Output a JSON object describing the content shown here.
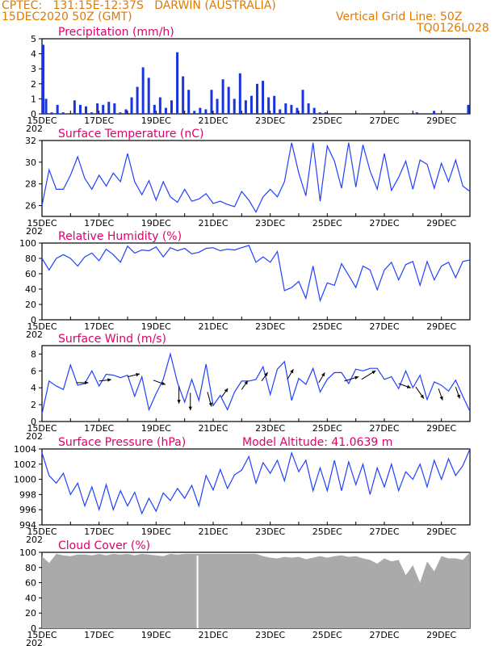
{
  "header": {
    "line1": "CPTEC:   131:15E-12:37S   DARWIN (AUSTRALIA)",
    "line2": "15DEC2020 50Z (GMT)",
    "right1": "Vertical Grid Line: 50Z",
    "right2": "TQ0126L028"
  },
  "colors": {
    "header": "#e07a00",
    "title": "#e0006a",
    "line": "#2040ff",
    "bar": "#1a35e0",
    "cloud": "#aaaaaa",
    "wind_arrow": "#000000"
  },
  "x_tick_labels": [
    "15DEC",
    "17DEC",
    "19DEC",
    "21DEC",
    "23DEC",
    "25DEC",
    "27DEC",
    "29DEC"
  ],
  "x_year_label": "202",
  "chart_data": [
    {
      "id": "precip",
      "type": "bar",
      "title": "Precipitation (mm/h)",
      "ylim": [
        0,
        5
      ],
      "yticks": [
        0,
        1,
        2,
        3,
        4,
        5
      ],
      "x": [
        0.0,
        0.1,
        0.3,
        0.5,
        0.7,
        0.9,
        1.1,
        1.3,
        1.5,
        1.7,
        1.9,
        2.1,
        2.3,
        2.5,
        2.7,
        2.9,
        3.1,
        3.3,
        3.5,
        3.7,
        3.9,
        4.1,
        4.3,
        4.5,
        4.7,
        4.9,
        5.1,
        5.3,
        5.5,
        5.7,
        5.9,
        6.1,
        6.3,
        6.5,
        6.7,
        6.9,
        7.1,
        7.3,
        7.5,
        7.7,
        7.9,
        8.1,
        8.3,
        8.5,
        8.7,
        8.9,
        9.1,
        9.3,
        9.5,
        9.7,
        9.9,
        10.1,
        10.3,
        10.5,
        10.7,
        10.9,
        11.1,
        11.3,
        11.5,
        11.7,
        11.9,
        12.1,
        12.3,
        12.5,
        12.7,
        12.9,
        13.1,
        13.3,
        13.5,
        13.7,
        13.9,
        14.1,
        14.3,
        14.5,
        14.7,
        14.9
      ],
      "values": [
        4.6,
        1.0,
        0.1,
        0.6,
        0.1,
        0.0,
        0.9,
        0.6,
        0.5,
        0.1,
        0.7,
        0.6,
        0.8,
        0.7,
        0.1,
        0.3,
        1.1,
        1.8,
        3.1,
        2.4,
        0.6,
        1.1,
        0.4,
        0.9,
        4.1,
        2.5,
        1.6,
        0.2,
        0.4,
        0.3,
        1.6,
        1.0,
        2.3,
        1.8,
        1.0,
        2.7,
        0.9,
        1.2,
        2.0,
        2.2,
        1.1,
        1.2,
        0.3,
        0.7,
        0.6,
        0.4,
        1.6,
        0.7,
        0.4,
        0.1,
        0.1,
        0.0,
        0.0,
        0.0,
        0.0,
        0.0,
        0.0,
        0.0,
        0.0,
        0.0,
        0.0,
        0.0,
        0.0,
        0.0,
        0.0,
        0.0,
        0.1,
        0.0,
        0.0,
        0.2,
        0.0,
        0.0,
        0.0,
        0.0,
        0.0,
        0.6
      ],
      "bar_width_days": 0.1
    },
    {
      "id": "temp",
      "type": "line",
      "title": "Surface Temperature (nC)",
      "ylim": [
        25,
        32
      ],
      "yticks": [
        26,
        28,
        30,
        32
      ],
      "x": [
        0,
        0.25,
        0.5,
        0.75,
        1.0,
        1.25,
        1.5,
        1.75,
        2.0,
        2.25,
        2.5,
        2.75,
        3.0,
        3.25,
        3.5,
        3.75,
        4.0,
        4.25,
        4.5,
        4.75,
        5.0,
        5.25,
        5.5,
        5.75,
        6.0,
        6.25,
        6.5,
        6.75,
        7.0,
        7.25,
        7.5,
        7.75,
        8.0,
        8.25,
        8.5,
        8.75,
        9.0,
        9.25,
        9.5,
        9.75,
        10.0,
        10.25,
        10.5,
        10.75,
        11.0,
        11.25,
        11.5,
        11.75,
        12.0,
        12.25,
        12.5,
        12.75,
        13.0,
        13.25,
        13.5,
        13.75,
        14.0,
        14.25,
        14.5,
        14.75,
        15.0
      ],
      "values": [
        26,
        29.3,
        27.5,
        27.5,
        28.8,
        30.5,
        28.5,
        27.5,
        28.8,
        27.8,
        29,
        28.2,
        30.8,
        28.2,
        27,
        28.3,
        26.5,
        28.2,
        26.8,
        26.3,
        27.5,
        26.4,
        26.6,
        27.1,
        26.2,
        26.4,
        26.1,
        25.9,
        27.3,
        26.5,
        25.4,
        26.8,
        27.5,
        26.8,
        28.2,
        31.8,
        29,
        26.9,
        31.8,
        26.4,
        31.5,
        30.1,
        27.6,
        31.8,
        27.7,
        31.6,
        29.2,
        27.5,
        30.8,
        27.4,
        28.6,
        30.1,
        27.5,
        30.2,
        29.8,
        27.6,
        29.9,
        28.2,
        30.2,
        27.8,
        27.3
      ]
    },
    {
      "id": "rh",
      "type": "line",
      "title": "Relative Humidity (%)",
      "ylim": [
        0,
        100
      ],
      "yticks": [
        0,
        20,
        40,
        60,
        80,
        100
      ],
      "x": [
        0,
        0.25,
        0.5,
        0.75,
        1.0,
        1.25,
        1.5,
        1.75,
        2.0,
        2.25,
        2.5,
        2.75,
        3.0,
        3.25,
        3.5,
        3.75,
        4.0,
        4.25,
        4.5,
        4.75,
        5.0,
        5.25,
        5.5,
        5.75,
        6.0,
        6.25,
        6.5,
        6.75,
        7.0,
        7.25,
        7.5,
        7.75,
        8.0,
        8.25,
        8.5,
        8.75,
        9.0,
        9.25,
        9.5,
        9.75,
        10.0,
        10.25,
        10.5,
        10.75,
        11.0,
        11.25,
        11.5,
        11.75,
        12.0,
        12.25,
        12.5,
        12.75,
        13.0,
        13.25,
        13.5,
        13.75,
        14.0,
        14.25,
        14.5,
        14.75,
        15.0
      ],
      "values": [
        80,
        65,
        80,
        85,
        80,
        70,
        82,
        87,
        77,
        92,
        85,
        75,
        96,
        87,
        91,
        90,
        95,
        82,
        94,
        90,
        93,
        86,
        88,
        93,
        94,
        90,
        92,
        91,
        94,
        97,
        75,
        82,
        75,
        89,
        38,
        42,
        50,
        28,
        70,
        25,
        48,
        45,
        73,
        58,
        42,
        70,
        65,
        39,
        65,
        75,
        52,
        72,
        76,
        45,
        76,
        52,
        70,
        75,
        55,
        76,
        78
      ]
    },
    {
      "id": "wind",
      "type": "line",
      "title": "Surface Wind (m/s)",
      "ylim": [
        0,
        9
      ],
      "yticks": [
        0,
        2,
        4,
        6,
        8
      ],
      "x": [
        0,
        0.25,
        0.5,
        0.75,
        1.0,
        1.25,
        1.5,
        1.75,
        2.0,
        2.25,
        2.5,
        2.75,
        3.0,
        3.25,
        3.5,
        3.75,
        4.0,
        4.25,
        4.5,
        4.75,
        5.0,
        5.25,
        5.5,
        5.75,
        6.0,
        6.25,
        6.5,
        6.75,
        7.0,
        7.25,
        7.5,
        7.75,
        8.0,
        8.25,
        8.5,
        8.75,
        9.0,
        9.25,
        9.5,
        9.75,
        10.0,
        10.25,
        10.5,
        10.75,
        11.0,
        11.25,
        11.5,
        11.75,
        12.0,
        12.25,
        12.5,
        12.75,
        13.0,
        13.25,
        13.5,
        13.75,
        14.0,
        14.25,
        14.5,
        14.75,
        15.0
      ],
      "values": [
        0.9,
        4.8,
        4.2,
        3.8,
        6.7,
        4.3,
        4.5,
        6.0,
        4.2,
        5.6,
        5.5,
        5.2,
        5.5,
        3.0,
        5.3,
        1.4,
        3.3,
        5.0,
        8.0,
        4.6,
        2.3,
        5.0,
        2.5,
        6.8,
        1.9,
        3.1,
        1.4,
        3.5,
        4.8,
        4.8,
        5.0,
        6.5,
        3.2,
        6.2,
        7.1,
        2.5,
        5.1,
        4.4,
        6.3,
        3.5,
        5.0,
        5.8,
        5.8,
        4.5,
        6.2,
        6.0,
        6.3,
        6.3,
        5.0,
        5.3,
        3.9,
        6.0,
        4.0,
        5.5,
        2.6,
        4.7,
        4.3,
        3.6,
        4.9,
        3.0,
        1.2
      ],
      "arrows": [
        [
          1.2,
          4.6,
          0.6,
          0.0
        ],
        [
          2.0,
          4.8,
          0.6,
          0.1
        ],
        [
          3.0,
          5.3,
          0.6,
          0.2
        ],
        [
          3.9,
          4.9,
          0.6,
          -0.3
        ],
        [
          4.8,
          4.2,
          0.0,
          -1.2
        ],
        [
          5.2,
          3.4,
          0.0,
          -1.2
        ],
        [
          5.8,
          3.5,
          0.2,
          -1.0
        ],
        [
          6.3,
          2.9,
          0.3,
          0.6
        ],
        [
          7.0,
          3.8,
          0.3,
          0.6
        ],
        [
          7.7,
          4.8,
          0.3,
          0.6
        ],
        [
          8.6,
          5.0,
          0.3,
          0.7
        ],
        [
          9.7,
          4.6,
          0.3,
          0.7
        ],
        [
          10.6,
          4.8,
          0.7,
          0.3
        ],
        [
          11.2,
          5.0,
          0.7,
          0.6
        ],
        [
          12.5,
          4.5,
          0.6,
          -0.3
        ],
        [
          13.1,
          4.1,
          0.4,
          -0.8
        ],
        [
          13.9,
          3.9,
          0.2,
          -0.8
        ],
        [
          14.5,
          4.1,
          0.2,
          -0.8
        ]
      ]
    },
    {
      "id": "pres",
      "type": "line",
      "title": "Surface Pressure (hPa)",
      "annotation": "Model Altitude: 41.0639 m",
      "ylim": [
        994,
        1004
      ],
      "yticks": [
        994,
        996,
        998,
        1000,
        1002,
        1004
      ],
      "x": [
        0,
        0.25,
        0.5,
        0.75,
        1.0,
        1.25,
        1.5,
        1.75,
        2.0,
        2.25,
        2.5,
        2.75,
        3.0,
        3.25,
        3.5,
        3.75,
        4.0,
        4.25,
        4.5,
        4.75,
        5.0,
        5.25,
        5.5,
        5.75,
        6.0,
        6.25,
        6.5,
        6.75,
        7.0,
        7.25,
        7.5,
        7.75,
        8.0,
        8.25,
        8.5,
        8.75,
        9.0,
        9.25,
        9.5,
        9.75,
        10.0,
        10.25,
        10.5,
        10.75,
        11.0,
        11.25,
        11.5,
        11.75,
        12.0,
        12.25,
        12.5,
        12.75,
        13.0,
        13.25,
        13.5,
        13.75,
        14.0,
        14.25,
        14.5,
        14.75,
        15.0
      ],
      "values": [
        1003.5,
        1000.5,
        999.5,
        1000.8,
        998,
        999.5,
        996.5,
        999,
        996,
        999.3,
        996,
        998.5,
        996.5,
        998.3,
        995.5,
        997.5,
        995.8,
        998.2,
        997.2,
        998.8,
        997.5,
        999.2,
        996.5,
        1000.5,
        998.6,
        1001.3,
        998.8,
        1000.6,
        1001.2,
        1003.0,
        999.5,
        1002.2,
        1000.8,
        1002.5,
        999.8,
        1003.5,
        1001.0,
        1002.5,
        998.5,
        1001.5,
        998.5,
        1002.5,
        998.5,
        1002.3,
        999.3,
        1002.0,
        998.0,
        1001.5,
        999.0,
        1002.0,
        998.5,
        1001.0,
        1000.0,
        1002.0,
        999.0,
        1002.5,
        1000.0,
        1002.7,
        1000.5,
        1001.8,
        1004.0
      ]
    },
    {
      "id": "cloud",
      "type": "area",
      "title": "Cloud Cover (%)",
      "ylim": [
        0,
        100
      ],
      "yticks": [
        0,
        20,
        40,
        60,
        80,
        100
      ],
      "x": [
        0,
        0.25,
        0.5,
        0.75,
        1.0,
        1.25,
        1.5,
        1.75,
        2.0,
        2.25,
        2.5,
        2.75,
        3.0,
        3.25,
        3.5,
        3.75,
        4.0,
        4.25,
        4.5,
        4.75,
        5.0,
        5.25,
        5.5,
        5.75,
        6.0,
        6.25,
        6.5,
        6.75,
        7.0,
        7.25,
        7.5,
        7.75,
        8.0,
        8.25,
        8.5,
        8.75,
        9.0,
        9.25,
        9.5,
        9.75,
        10.0,
        10.25,
        10.5,
        10.75,
        11.0,
        11.25,
        11.5,
        11.75,
        12.0,
        12.25,
        12.5,
        12.75,
        13.0,
        13.25,
        13.5,
        13.75,
        14.0,
        14.25,
        14.5,
        14.75,
        15.0
      ],
      "values": [
        95,
        86,
        98,
        96,
        95,
        97,
        97,
        96,
        98,
        96,
        98,
        97,
        98,
        96,
        98,
        97,
        96,
        95,
        98,
        97,
        98,
        98,
        98,
        98,
        98,
        98,
        98,
        98,
        98,
        98,
        98,
        95,
        93,
        92,
        94,
        93,
        94,
        91,
        93,
        95,
        93,
        95,
        96,
        94,
        95,
        92,
        90,
        85,
        92,
        88,
        90,
        70,
        83,
        60,
        88,
        75,
        95,
        92,
        92,
        90,
        100
      ]
    }
  ]
}
